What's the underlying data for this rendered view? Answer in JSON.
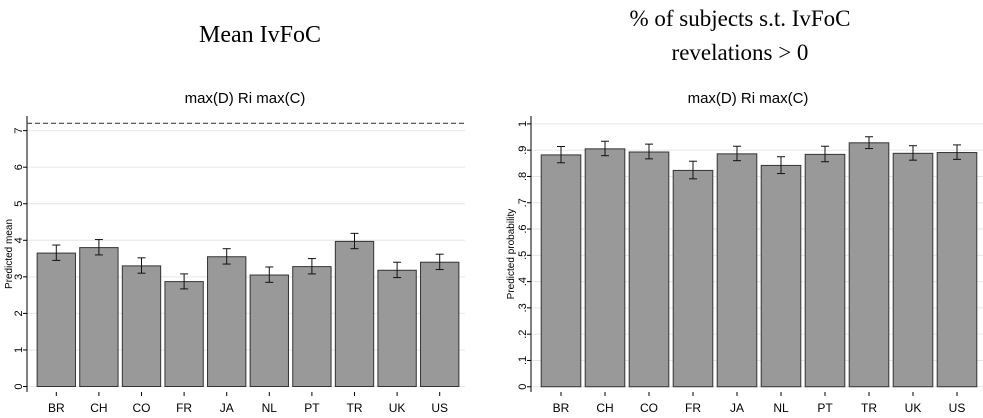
{
  "headings": {
    "left": "Mean IvFoC",
    "right_line1": "% of subjects s.t. IvFoC",
    "right_line2": "revelations > 0"
  },
  "chart_data": [
    {
      "type": "bar",
      "title": "max(D) Ri max(C)",
      "xlabel": "",
      "ylabel": "Predicted mean",
      "categories": [
        "BR",
        "CH",
        "CO",
        "FR",
        "JA",
        "NL",
        "PT",
        "TR",
        "UK",
        "US"
      ],
      "values": [
        3.65,
        3.8,
        3.3,
        2.87,
        3.55,
        3.05,
        3.28,
        3.97,
        3.18,
        3.4
      ],
      "error_low": [
        3.45,
        3.6,
        3.1,
        2.67,
        3.35,
        2.85,
        3.08,
        3.77,
        2.98,
        3.2
      ],
      "error_high": [
        3.87,
        4.02,
        3.52,
        3.08,
        3.77,
        3.27,
        3.5,
        4.19,
        3.4,
        3.62
      ],
      "yticks": [
        "0",
        "1",
        "2",
        "3",
        "4",
        "5",
        "6",
        "7"
      ],
      "ytick_values": [
        0,
        1,
        2,
        3,
        4,
        5,
        6,
        7
      ],
      "ylim": [
        -0.15,
        7.4
      ],
      "reference_line": 7.2,
      "grid": true,
      "bar_color": "#999999"
    },
    {
      "type": "bar",
      "title": "max(D) Ri max(C)",
      "xlabel": "",
      "ylabel": "Predicted probability",
      "categories": [
        "BR",
        "CH",
        "CO",
        "FR",
        "JA",
        "NL",
        "PT",
        "TR",
        "UK",
        "US"
      ],
      "values": [
        0.882,
        0.905,
        0.893,
        0.823,
        0.886,
        0.842,
        0.884,
        0.928,
        0.888,
        0.891
      ],
      "error_low": [
        0.852,
        0.879,
        0.867,
        0.791,
        0.86,
        0.811,
        0.856,
        0.906,
        0.862,
        0.865
      ],
      "error_high": [
        0.914,
        0.934,
        0.923,
        0.858,
        0.915,
        0.875,
        0.915,
        0.951,
        0.917,
        0.92
      ],
      "yticks": [
        "0",
        ".1",
        ".2",
        ".3",
        ".4",
        ".5",
        ".6",
        ".7",
        ".8",
        ".9",
        "1"
      ],
      "ytick_values": [
        0,
        0.1,
        0.2,
        0.3,
        0.4,
        0.5,
        0.6,
        0.7,
        0.8,
        0.9,
        1.0
      ],
      "ylim": [
        -0.02,
        1.03
      ],
      "grid": true,
      "bar_color": "#999999"
    }
  ]
}
